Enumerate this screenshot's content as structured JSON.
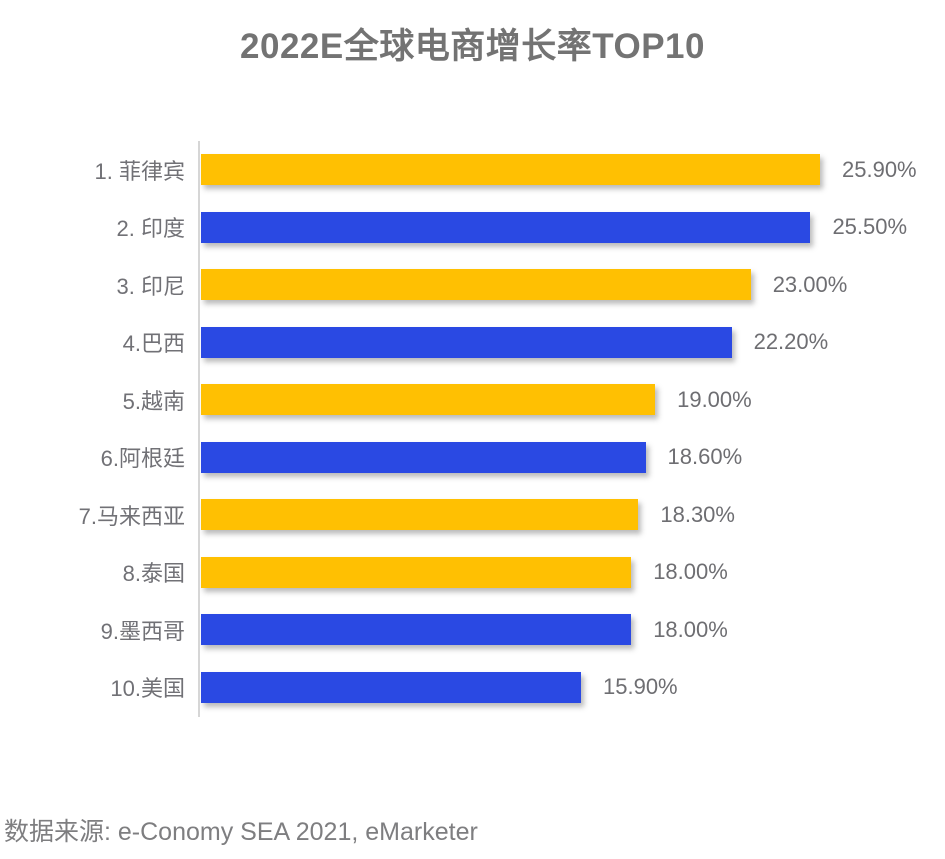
{
  "chart_data": {
    "type": "bar",
    "orientation": "horizontal",
    "title": "2022E全球电商增长率TOP10",
    "categories": [
      "1. 菲律宾",
      "2. 印度",
      "3. 印尼",
      "4.巴西",
      "5.越南",
      "6.阿根廷",
      "7.马来西亚",
      "8.泰国",
      "9.墨西哥",
      "10.美国"
    ],
    "values": [
      25.9,
      25.5,
      23.0,
      22.2,
      19.0,
      18.6,
      18.3,
      18.0,
      18.0,
      15.9
    ],
    "value_labels": [
      "25.90%",
      "25.50%",
      "23.00%",
      "22.20%",
      "19.00%",
      "18.60%",
      "18.30%",
      "18.00%",
      "18.00%",
      "15.90%"
    ],
    "bar_colors": [
      "#FFC002",
      "#2A49E3",
      "#FFC002",
      "#2A49E3",
      "#FFC002",
      "#2A49E3",
      "#FFC002",
      "#FFC002",
      "#2A49E3",
      "#2A49E3"
    ],
    "xlabel": "",
    "ylabel": "",
    "xlim": [
      0,
      26
    ],
    "grid": false,
    "legend": "none",
    "data_labels": "outside-end"
  },
  "source_note": "数据来源: e-Conomy SEA 2021, eMarketer",
  "colors": {
    "gold": "#FFC002",
    "blue": "#2A49E3",
    "axis_line": "#D6D6D6",
    "label_text": "#717176",
    "title_text": "#737373",
    "source_text": "#7E7E80"
  }
}
